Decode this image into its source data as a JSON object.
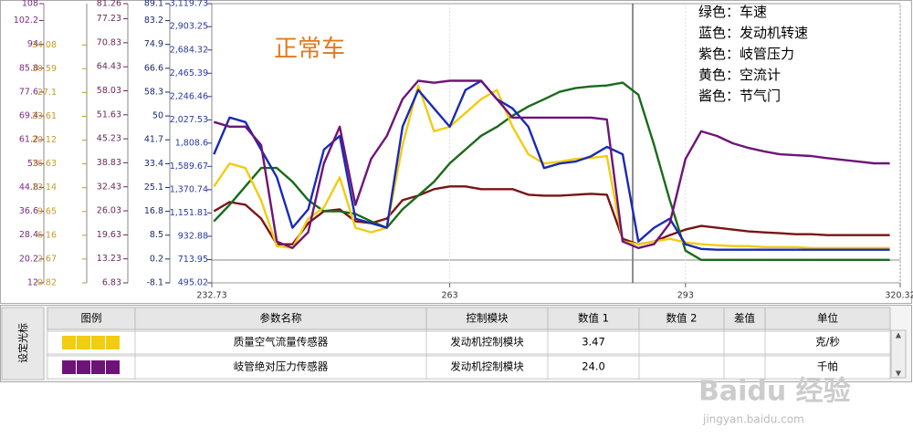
{
  "chart_data": {
    "type": "line",
    "annotation": "正常车",
    "color_notes": [
      "绿色：车速",
      "蓝色：发动机转速",
      "紫色：岐管压力",
      "黄色：空流计",
      "酱色：节气门"
    ],
    "x": [
      233,
      235,
      237,
      239,
      241,
      243,
      245,
      247,
      249,
      251,
      253,
      255,
      257,
      259,
      261,
      263,
      265,
      267,
      269,
      271,
      273,
      275,
      277,
      279,
      281,
      283,
      285,
      287,
      289,
      291,
      293,
      295,
      297,
      299,
      301,
      303,
      305,
      307,
      309,
      311,
      313,
      315,
      317,
      319
    ],
    "xlim": [
      232.73,
      320.32
    ],
    "xticks": [
      232.73,
      263,
      293,
      320.32
    ],
    "grid": true,
    "y_axes": [
      {
        "color": "#7a2a82",
        "ylim": [
          12,
          108
        ],
        "yticks": [
          12,
          20.2,
          28.4,
          36.6,
          44.8,
          53,
          61.2,
          69.4,
          77.6,
          85.8,
          94,
          102.2,
          108
        ]
      },
      {
        "color": "#c89a28",
        "ylim": [
          -0.82,
          40.14
        ],
        "yticks": [
          -0.82,
          2.67,
          6.16,
          9.65,
          13.14,
          16.63,
          20.12,
          23.61,
          27.1,
          30.59,
          34.08
        ]
      },
      {
        "color": "#6a2a5a",
        "ylim": [
          6.83,
          81.26
        ],
        "yticks": [
          6.83,
          13.23,
          19.63,
          26.03,
          32.43,
          38.83,
          45.23,
          51.63,
          58.03,
          64.43,
          70.83,
          77.23,
          81.26
        ]
      },
      {
        "color": "#1a2a6a",
        "ylim": [
          -8.1,
          89.1
        ],
        "yticks": [
          -8.1,
          0.2,
          8.5,
          16.8,
          25.1,
          33.4,
          41.7,
          50,
          58.3,
          66.6,
          74.9,
          83.2,
          89.1
        ]
      },
      {
        "color": "#2a3aa0",
        "ylim": [
          495.02,
          3119.73
        ],
        "yticks": [
          495.02,
          713.95,
          932.88,
          {
            "value": 1151.81,
            "label": "1,151.81"
          },
          {
            "value": 1370.74,
            "label": "1,370.74"
          },
          {
            "value": 1589.67,
            "label": "1,589.67"
          },
          {
            "value": 1808.6,
            "label": "1,808.6"
          },
          {
            "value": 2027.53,
            "label": "2,027.53"
          },
          {
            "value": 2246.46,
            "label": "2,246.46"
          },
          {
            "value": 2465.39,
            "label": "2,465.39"
          },
          {
            "value": 2684.32,
            "label": "2,684.32"
          },
          {
            "value": 2903.25,
            "label": "2,903.25"
          },
          {
            "value": 3119.73,
            "label": "3,119.73"
          }
        ]
      }
    ],
    "series": [
      {
        "color": "#7a1414",
        "axis": 2,
        "values": [
          25.92,
          28.37,
          27.64,
          23.97,
          17.11,
          17.11,
          22.74,
          25.92,
          26.41,
          23.23,
          22.74,
          23.97,
          28.86,
          30.09,
          31.8,
          32.53,
          32.53,
          31.8,
          31.8,
          31.8,
          30.33,
          30.09,
          30.09,
          30.33,
          30.58,
          30.33,
          18.58,
          17.11,
          17.85,
          19.56,
          21.03,
          22.01,
          21.52,
          21.03,
          20.54,
          20.29,
          20.05,
          19.8,
          19.8,
          19.56,
          19.56,
          19.56,
          19.56,
          19.56
        ]
      },
      {
        "color": "#1a6a1a",
        "axis": 3,
        "values": [
          13.3,
          19.1,
          25.5,
          31.9,
          31.9,
          27.1,
          20.7,
          16.8,
          16.8,
          15.9,
          13.3,
          11.1,
          17.5,
          22.3,
          27.1,
          33.5,
          38.3,
          43.1,
          46.2,
          50.1,
          53.3,
          55.8,
          58.4,
          59.7,
          60.3,
          60.6,
          61.6,
          57.4,
          39.9,
          20.7,
          3.1,
          -0.1,
          -0.1,
          -0.1,
          -0.1,
          -0.1,
          -0.1,
          -0.1,
          -0.1,
          -0.1,
          -0.1,
          -0.1,
          -0.1,
          -0.1
        ]
      },
      {
        "color": "#f2cc10",
        "axis": 1,
        "values": [
          13.32,
          16.69,
          16.02,
          11.3,
          4.57,
          4.3,
          8.61,
          10.23,
          14.67,
          7.26,
          6.59,
          7.26,
          19.39,
          28.14,
          21.41,
          22.08,
          24.1,
          26.12,
          27.47,
          22.08,
          18.04,
          16.69,
          16.96,
          17.36,
          17.5,
          17.77,
          5.24,
          4.84,
          5.24,
          5.65,
          5.11,
          4.84,
          4.7,
          4.57,
          4.57,
          4.43,
          4.43,
          4.43,
          4.3,
          4.3,
          4.3,
          4.3,
          4.3,
          4.3
        ]
      },
      {
        "color": "#1a2ab4",
        "axis": 4,
        "values": [
          1704,
          2049,
          2006,
          1747,
          1488,
          1013,
          1186,
          1747,
          1876,
          1099,
          1056,
          1013,
          1963,
          2308,
          2135,
          1963,
          2308,
          2394,
          2222,
          2135,
          1963,
          1574,
          1617,
          1635,
          1686,
          1773,
          1704,
          884,
          1013,
          1099,
          858,
          814,
          806,
          806,
          806,
          806,
          806,
          806,
          806,
          806,
          806,
          806,
          806,
          806
        ]
      },
      {
        "color": "#6e1478",
        "axis": 0,
        "values": [
          67.3,
          65.7,
          65.7,
          59.4,
          26.2,
          24.0,
          29.4,
          53.1,
          65.7,
          38.8,
          54.6,
          62.5,
          75.2,
          81.5,
          80.8,
          81.5,
          81.5,
          81.5,
          75.2,
          68.8,
          68.8,
          68.8,
          68.8,
          68.8,
          68.8,
          68.2,
          26.2,
          24.0,
          25.3,
          32.5,
          54.6,
          64.1,
          62.5,
          60.0,
          58.4,
          57.2,
          56.2,
          55.9,
          55.6,
          54.9,
          54.3,
          53.7,
          53.1,
          53.1
        ]
      }
    ]
  },
  "side_tab": "设定光标",
  "table": {
    "header": [
      "图例",
      "参数名称",
      "控制模块",
      "数值 1",
      "数值 2",
      "差值",
      "单位"
    ],
    "rows": [
      {
        "color": "#f2cc10",
        "name": "质量空气流量传感器",
        "module": "发动机控制模块",
        "value1": "3.47",
        "unit": "克/秒"
      },
      {
        "color": "#6e1478",
        "name": "岐管绝对压力传感器",
        "module": "发动机控制模块",
        "value1": "24.0",
        "unit": "千帕"
      }
    ]
  },
  "watermark": {
    "logo": "Baidu 经验",
    "url": "jingyan.baidu.com"
  }
}
